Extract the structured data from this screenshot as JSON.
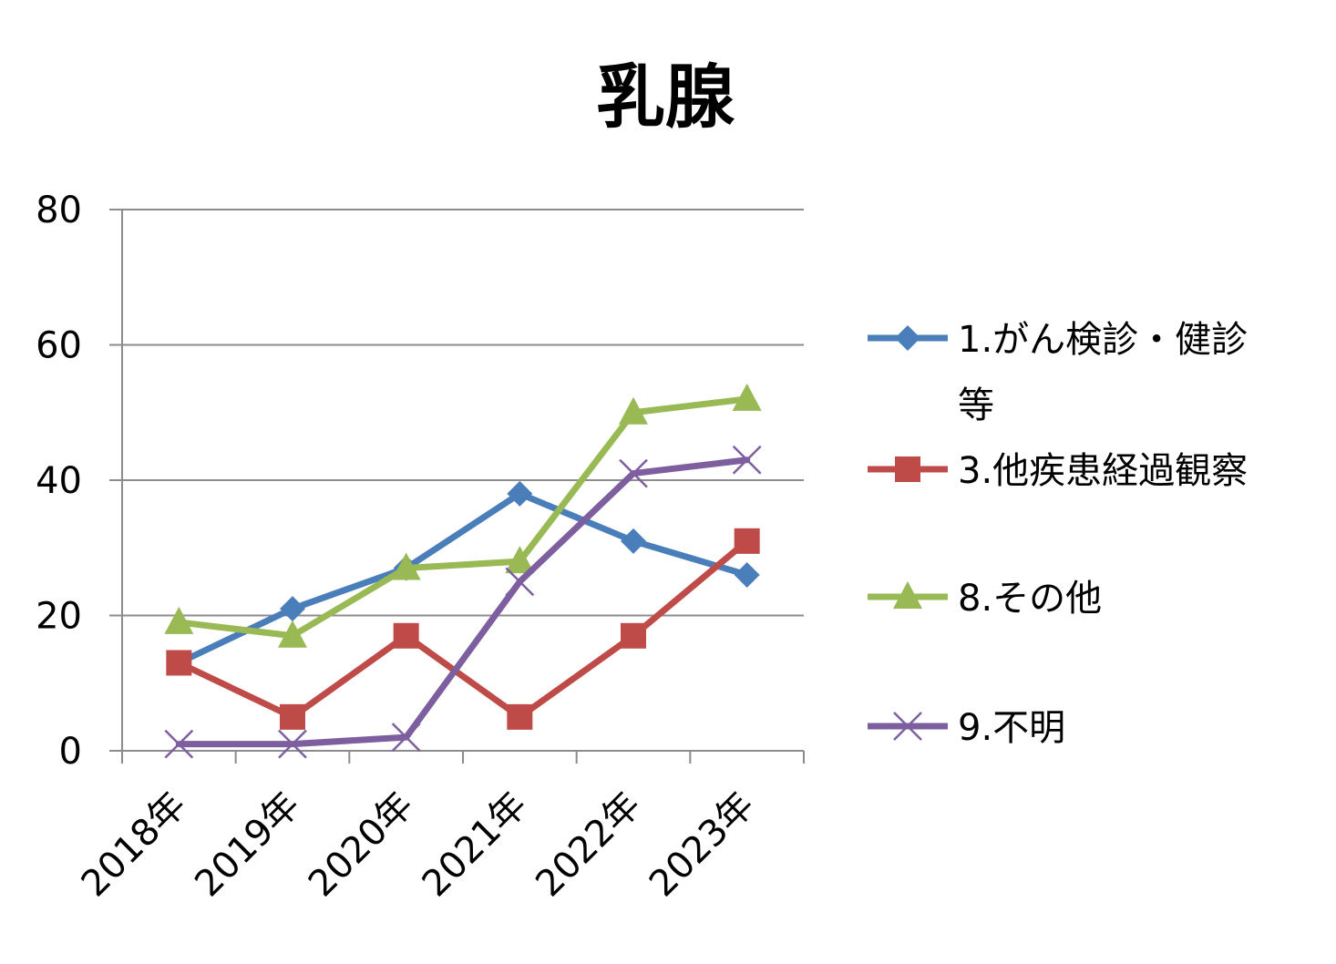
{
  "chart_data": {
    "type": "line",
    "title": "乳腺",
    "xlabel": "",
    "ylabel": "",
    "categories": [
      "2018年",
      "2019年",
      "2020年",
      "2021年",
      "2022年",
      "2023年"
    ],
    "ylim": [
      0,
      80
    ],
    "yticks": [
      0,
      20,
      40,
      60,
      80
    ],
    "grid": true,
    "legend_position": "right",
    "series": [
      {
        "name": "1.がん検診・健診等",
        "values": [
          13,
          21,
          27,
          38,
          31,
          26
        ],
        "color": "#4A7EBB",
        "marker": "diamond"
      },
      {
        "name": "3.他疾患経過観察",
        "values": [
          13,
          5,
          17,
          5,
          17,
          31
        ],
        "color": "#BE4B48",
        "marker": "square"
      },
      {
        "name": "8.その他",
        "values": [
          19,
          17,
          27,
          28,
          50,
          52
        ],
        "color": "#98B954",
        "marker": "triangle"
      },
      {
        "name": "9.不明",
        "values": [
          1,
          1,
          2,
          25,
          41,
          43
        ],
        "color": "#7D5FA0",
        "marker": "x"
      }
    ]
  }
}
